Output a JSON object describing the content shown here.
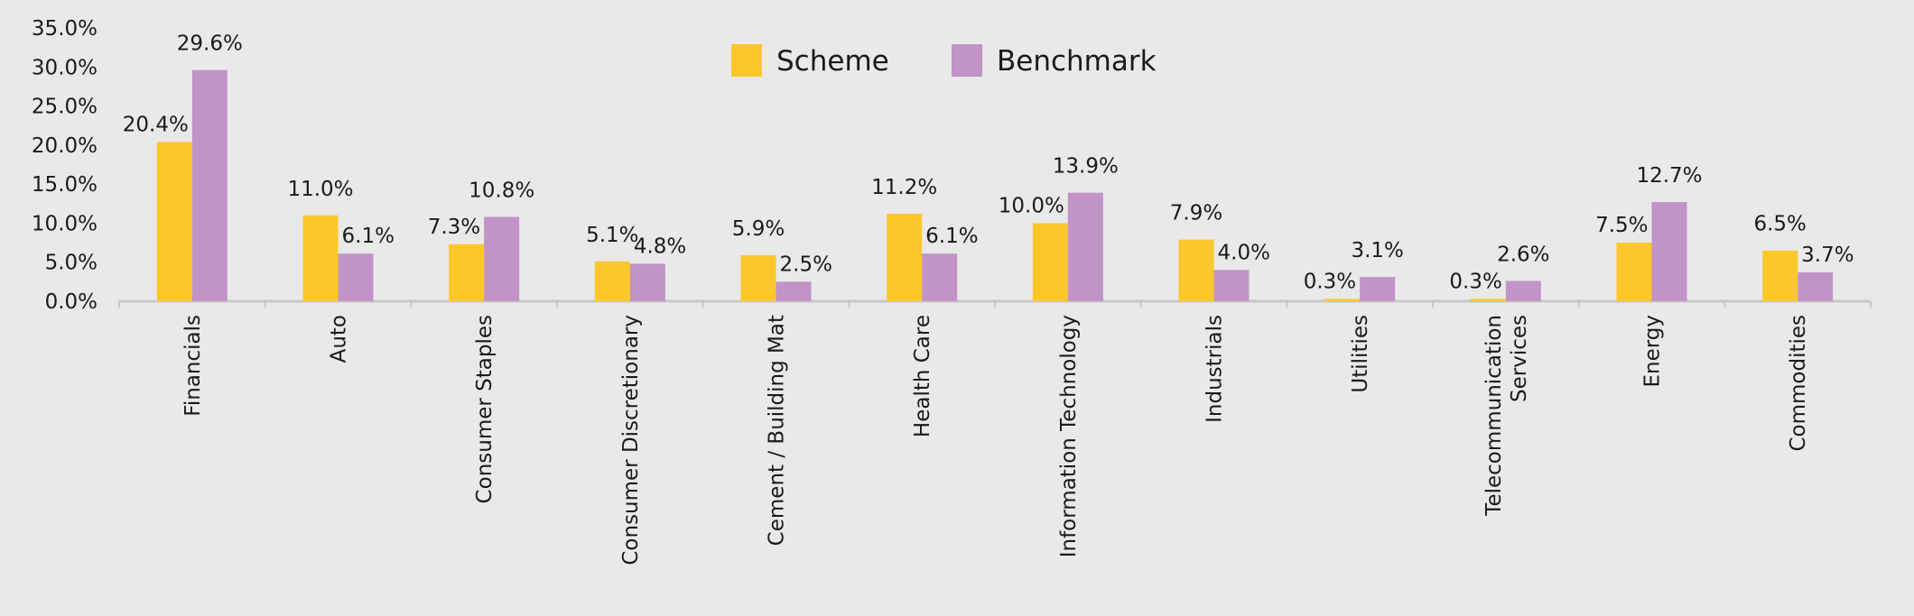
{
  "chart_data": {
    "type": "bar",
    "title": "",
    "xlabel": "",
    "ylabel": "",
    "ylim": [
      0,
      35
    ],
    "yticks": [
      "0.0%",
      "5.0%",
      "10.0%",
      "15.0%",
      "20.0%",
      "25.0%",
      "30.0%",
      "35.0%"
    ],
    "ytick_values": [
      0,
      5,
      10,
      15,
      20,
      25,
      30,
      35
    ],
    "grid": false,
    "legend_position": "top-center",
    "categories": [
      "Financials",
      "Auto",
      "Consumer Staples",
      "Consumer Discretionary",
      "Cement / Building Mat",
      "Health Care",
      "Information Technology",
      "Industrials",
      "Utilities",
      "Telecommunication Services",
      "Energy",
      "Commodities"
    ],
    "series": [
      {
        "name": "Scheme",
        "color": "#fcc72b",
        "values": [
          20.4,
          11.0,
          7.3,
          5.1,
          5.9,
          11.2,
          10.0,
          7.9,
          0.3,
          0.3,
          7.5,
          6.5
        ],
        "labels": [
          "20.4%",
          "11.0%",
          "7.3%",
          "5.1%",
          "5.9%",
          "11.2%",
          "10.0%",
          "7.9%",
          "0.3%",
          "0.3%",
          "7.5%",
          "6.5%"
        ]
      },
      {
        "name": "Benchmark",
        "color": "#c193c7",
        "values": [
          29.6,
          6.1,
          10.8,
          4.8,
          2.5,
          6.1,
          13.9,
          4.0,
          3.1,
          2.6,
          12.7,
          3.7
        ],
        "labels": [
          "29.6%",
          "6.1%",
          "10.8%",
          "4.8%",
          "2.5%",
          "6.1%",
          "13.9%",
          "4.0%",
          "3.1%",
          "2.6%",
          "12.7%",
          "3.7%"
        ]
      }
    ]
  }
}
